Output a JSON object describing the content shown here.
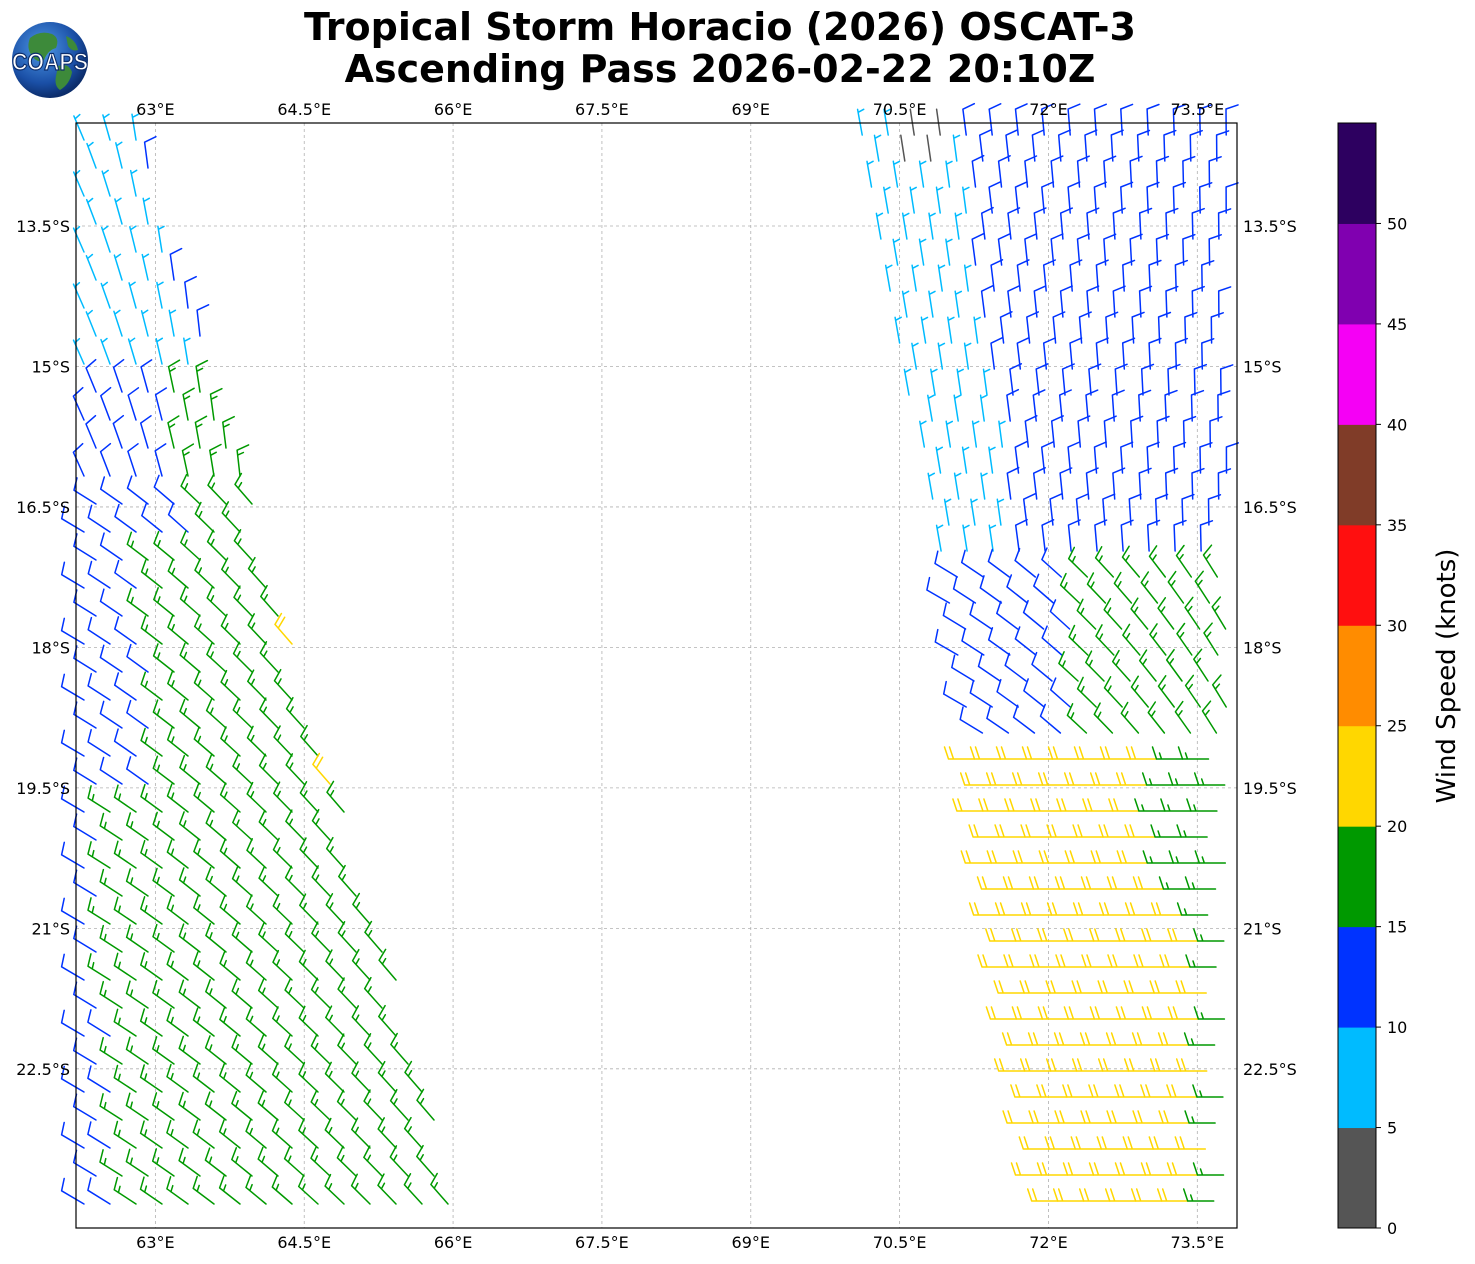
{
  "title": {
    "line1": "Tropical Storm Horacio (2026) OSCAT-3",
    "line2": "Ascending Pass 2026-02-22 20:10Z"
  },
  "logo": {
    "text": "COAPS",
    "icon": "globe-icon"
  },
  "map": {
    "lon_range": [
      62.2,
      73.9
    ],
    "lat_range": [
      -24.2,
      -12.4
    ],
    "lon_ticks": [
      "63°E",
      "64.5°E",
      "66°E",
      "67.5°E",
      "69°E",
      "70.5°E",
      "72°E",
      "73.5°E"
    ],
    "lat_ticks": [
      "13.5°S",
      "15°S",
      "16.5°S",
      "18°S",
      "19.5°S",
      "21°S",
      "22.5°S"
    ],
    "grid": true
  },
  "colorbar": {
    "label": "Wind Speed (knots)",
    "ticks": [
      "0",
      "5",
      "10",
      "15",
      "20",
      "25",
      "30",
      "35",
      "40",
      "45",
      "50"
    ],
    "colors": [
      "#555555",
      "#00bbff",
      "#0033ff",
      "#009900",
      "#ffd700",
      "#ff8c00",
      "#ff0f0f",
      "#803c28",
      "#f500f5",
      "#8000b0",
      "#2d0060"
    ]
  },
  "swaths": [
    {
      "name": "west-swath",
      "top_lon": [
        62.2,
        63.4
      ],
      "bottom_lon": [
        62.2,
        66.5
      ]
    },
    {
      "name": "east-swath",
      "top_lon": [
        70.4,
        73.9
      ],
      "bottom_lon": [
        72.1,
        73.9
      ]
    }
  ]
}
